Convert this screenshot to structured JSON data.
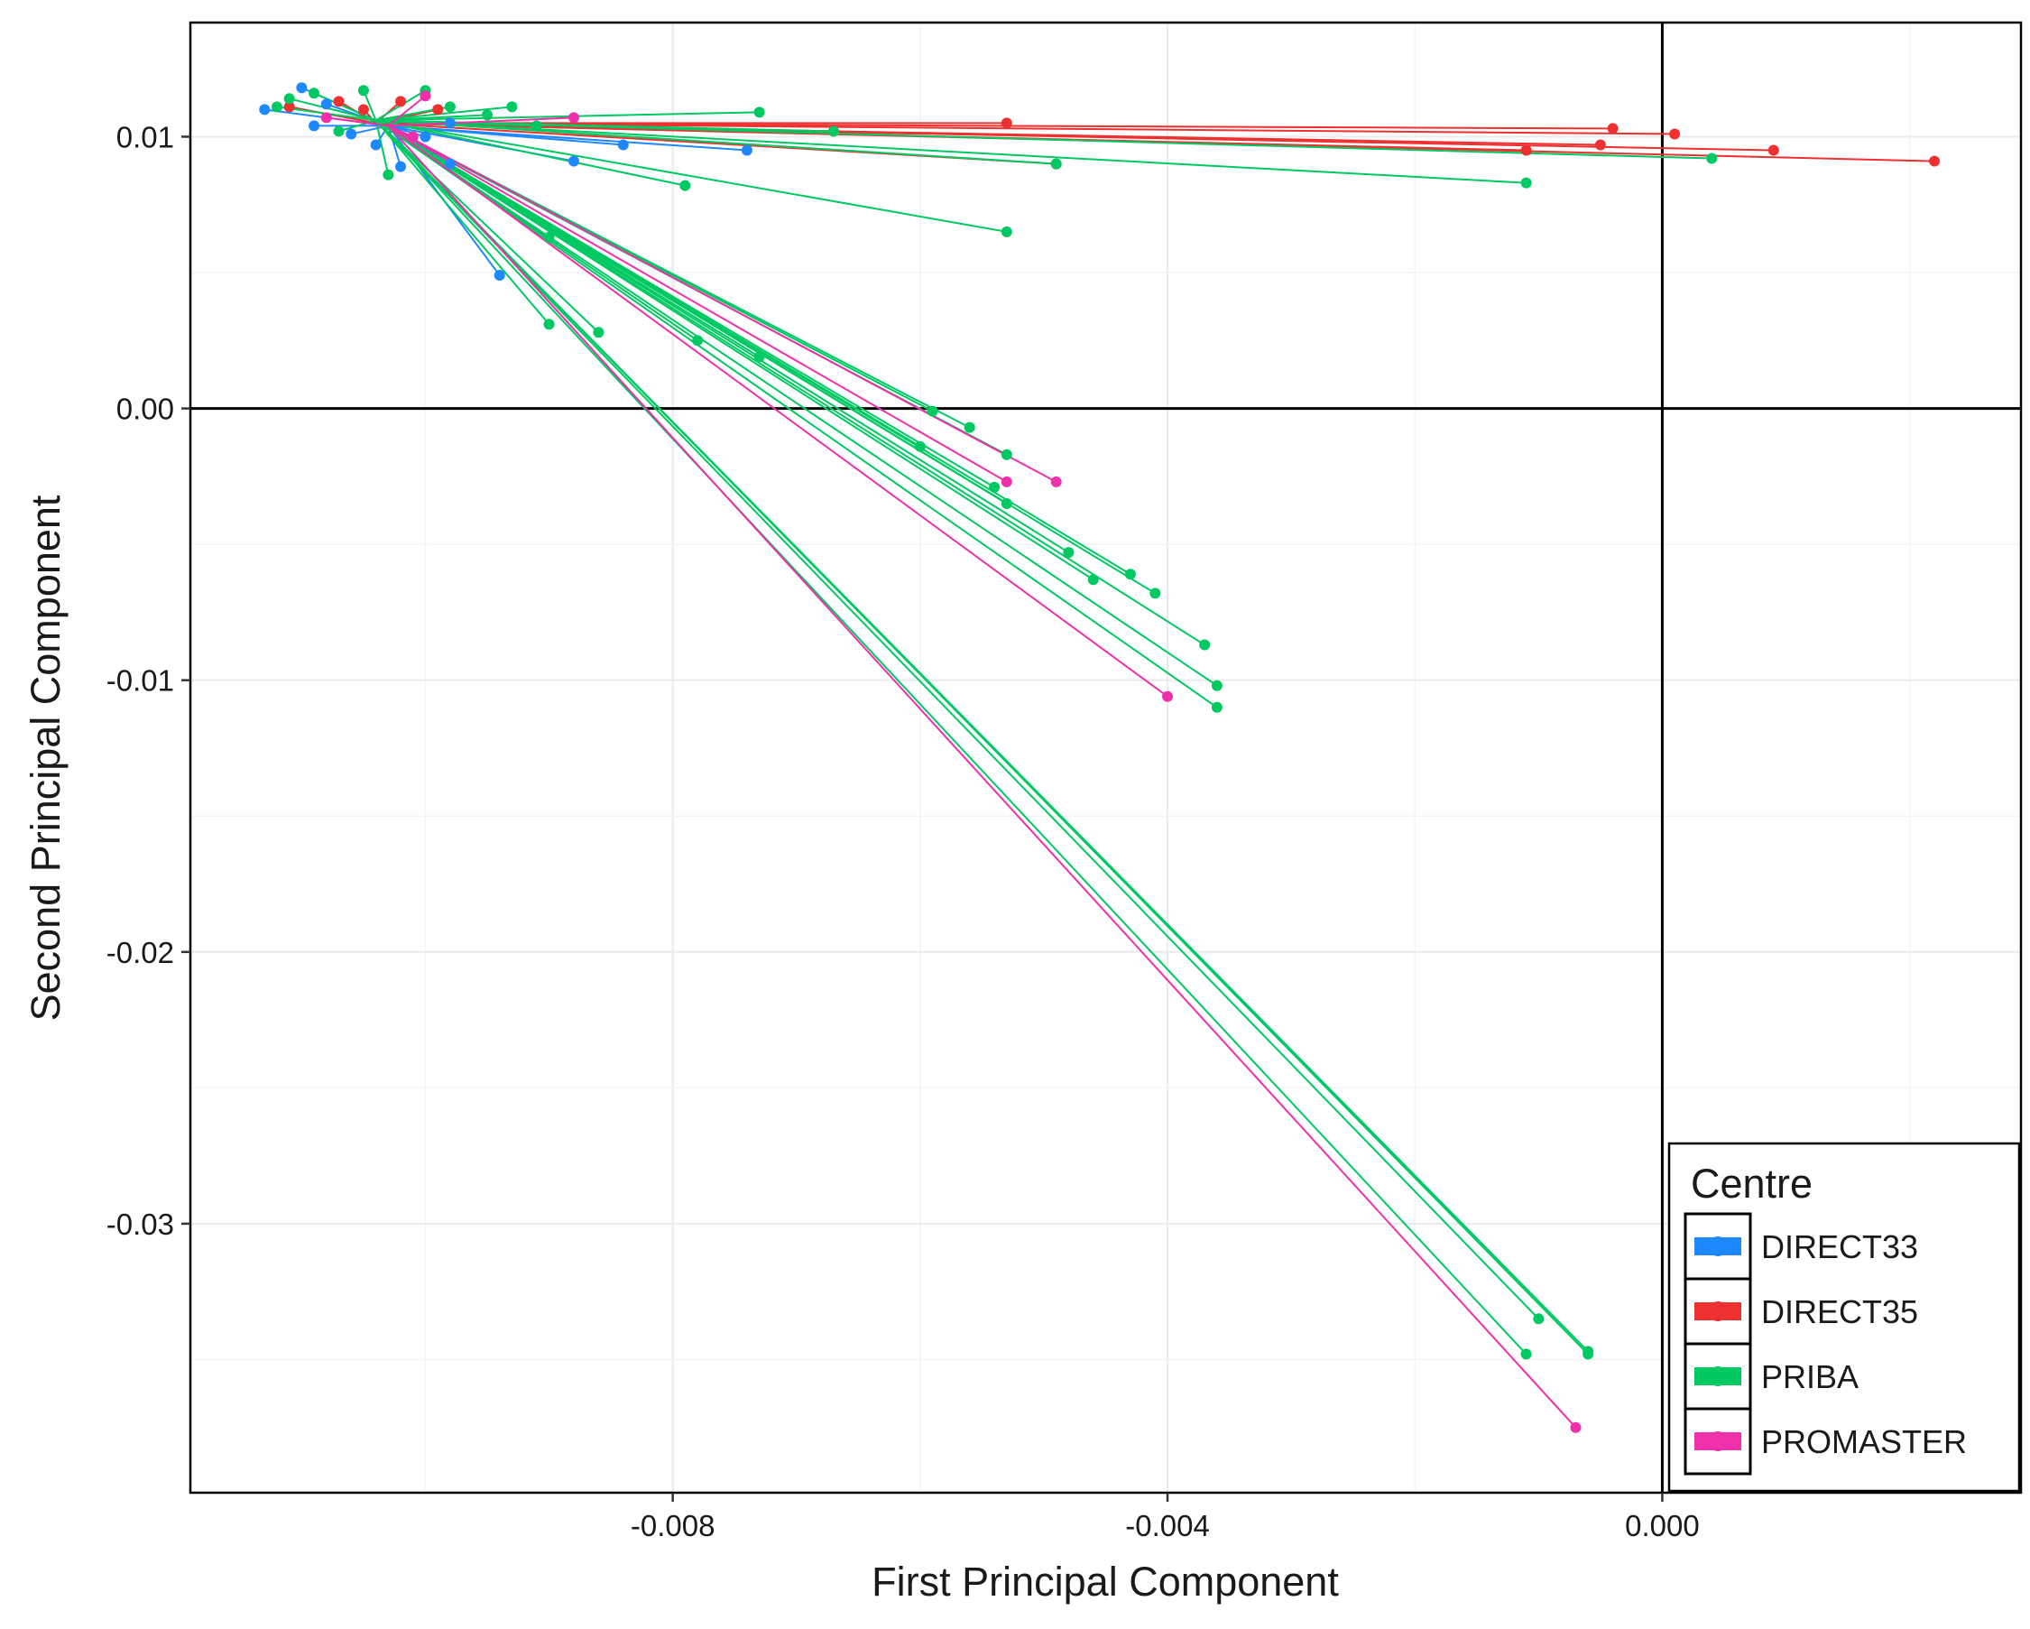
{
  "chart_data": {
    "type": "scatter",
    "subtype": "star-plot (points joined to group centroid)",
    "xlabel": "First Principal Component",
    "ylabel": "Second Principal Component",
    "xlim": [
      -0.0119,
      0.0029
    ],
    "ylim": [
      -0.0399,
      0.0142
    ],
    "x_ticks": [
      -0.008,
      -0.004,
      0.0
    ],
    "x_tick_labels": [
      "-0.008",
      "-0.004",
      "0.000"
    ],
    "y_ticks": [
      0.01,
      0.0,
      -0.01,
      -0.02,
      -0.03
    ],
    "y_tick_labels": [
      "0.01",
      "0.00",
      "-0.01",
      "-0.02",
      "-0.03"
    ],
    "grid": true,
    "reference_lines": {
      "x": 0,
      "y": 0
    },
    "legend": {
      "title": "Centre",
      "position": "bottom-right",
      "entries": [
        {
          "label": "DIRECT33",
          "color": "#1e88ff"
        },
        {
          "label": "DIRECT35",
          "color": "#ee3030"
        },
        {
          "label": "PRIBA",
          "color": "#00c862"
        },
        {
          "label": "PROMASTER",
          "color": "#ee30aa"
        }
      ]
    },
    "series": [
      {
        "name": "DIRECT33",
        "color": "#1e88ff",
        "centroid": [
          -0.0103,
          0.0104
        ],
        "points": [
          [
            -0.0113,
            0.011
          ],
          [
            -0.011,
            0.0118
          ],
          [
            -0.0109,
            0.0104
          ],
          [
            -0.0108,
            0.0112
          ],
          [
            -0.0106,
            0.0101
          ],
          [
            -0.0104,
            0.0097
          ],
          [
            -0.01,
            0.01
          ],
          [
            -0.0098,
            0.0105
          ],
          [
            -0.0102,
            0.0089
          ],
          [
            -0.0098,
            0.009
          ],
          [
            -0.0094,
            0.0049
          ],
          [
            -0.0088,
            0.0091
          ],
          [
            -0.0084,
            0.0097
          ],
          [
            -0.0074,
            0.0095
          ]
        ]
      },
      {
        "name": "DIRECT35",
        "color": "#ee3030",
        "centroid": [
          -0.0104,
          0.0105
        ],
        "points": [
          [
            -0.0111,
            0.0111
          ],
          [
            -0.0107,
            0.0113
          ],
          [
            -0.0105,
            0.011
          ],
          [
            -0.0102,
            0.0113
          ],
          [
            -0.0099,
            0.011
          ],
          [
            -0.0067,
            0.0102
          ],
          [
            -0.0053,
            0.0105
          ],
          [
            -0.0049,
            0.009
          ],
          [
            -0.0011,
            0.0095
          ],
          [
            -0.0004,
            0.0103
          ],
          [
            -0.0005,
            0.0097
          ],
          [
            0.0001,
            0.0101
          ],
          [
            0.0009,
            0.0095
          ],
          [
            0.0022,
            0.0091
          ]
        ]
      },
      {
        "name": "PRIBA",
        "color": "#00c862",
        "centroid": [
          -0.0104,
          0.0106
        ],
        "points": [
          [
            -0.0112,
            0.0111
          ],
          [
            -0.0111,
            0.0114
          ],
          [
            -0.0109,
            0.0116
          ],
          [
            -0.0107,
            0.0102
          ],
          [
            -0.0105,
            0.0117
          ],
          [
            -0.0103,
            0.0086
          ],
          [
            -0.01,
            0.0117
          ],
          [
            -0.0098,
            0.0111
          ],
          [
            -0.0095,
            0.0108
          ],
          [
            -0.0093,
            0.0111
          ],
          [
            -0.0091,
            0.0104
          ],
          [
            -0.009,
            0.0063
          ],
          [
            -0.009,
            0.0031
          ],
          [
            -0.0086,
            0.0028
          ],
          [
            -0.0079,
            0.0082
          ],
          [
            -0.0078,
            0.0025
          ],
          [
            -0.0073,
            0.0109
          ],
          [
            -0.0073,
            0.0019
          ],
          [
            -0.0067,
            0.0102
          ],
          [
            -0.0059,
            -0.0001
          ],
          [
            -0.006,
            -0.0014
          ],
          [
            -0.0056,
            -0.0007
          ],
          [
            -0.0054,
            -0.0029
          ],
          [
            -0.0053,
            -0.0017
          ],
          [
            -0.0053,
            -0.0035
          ],
          [
            -0.0053,
            0.0065
          ],
          [
            -0.0049,
            0.009
          ],
          [
            -0.0048,
            -0.0053
          ],
          [
            -0.0046,
            -0.0063
          ],
          [
            -0.0043,
            -0.0061
          ],
          [
            -0.0041,
            -0.0068
          ],
          [
            -0.0037,
            -0.0087
          ],
          [
            -0.0036,
            -0.0102
          ],
          [
            -0.0036,
            -0.011
          ],
          [
            -0.0011,
            0.0083
          ],
          [
            -0.0011,
            -0.0348
          ],
          [
            -0.001,
            -0.0335
          ],
          [
            -0.0006,
            -0.0348
          ],
          [
            -0.0006,
            -0.0347
          ],
          [
            0.0004,
            0.0092
          ]
        ]
      },
      {
        "name": "PROMASTER",
        "color": "#ee30aa",
        "centroid": [
          -0.0103,
          0.0104
        ],
        "points": [
          [
            -0.0108,
            0.0107
          ],
          [
            -0.01,
            0.0115
          ],
          [
            -0.0101,
            0.01
          ],
          [
            -0.0088,
            0.0107
          ],
          [
            -0.0053,
            -0.0027
          ],
          [
            -0.0049,
            -0.0027
          ],
          [
            -0.004,
            -0.0106
          ],
          [
            -0.0007,
            -0.0375
          ]
        ]
      }
    ]
  }
}
